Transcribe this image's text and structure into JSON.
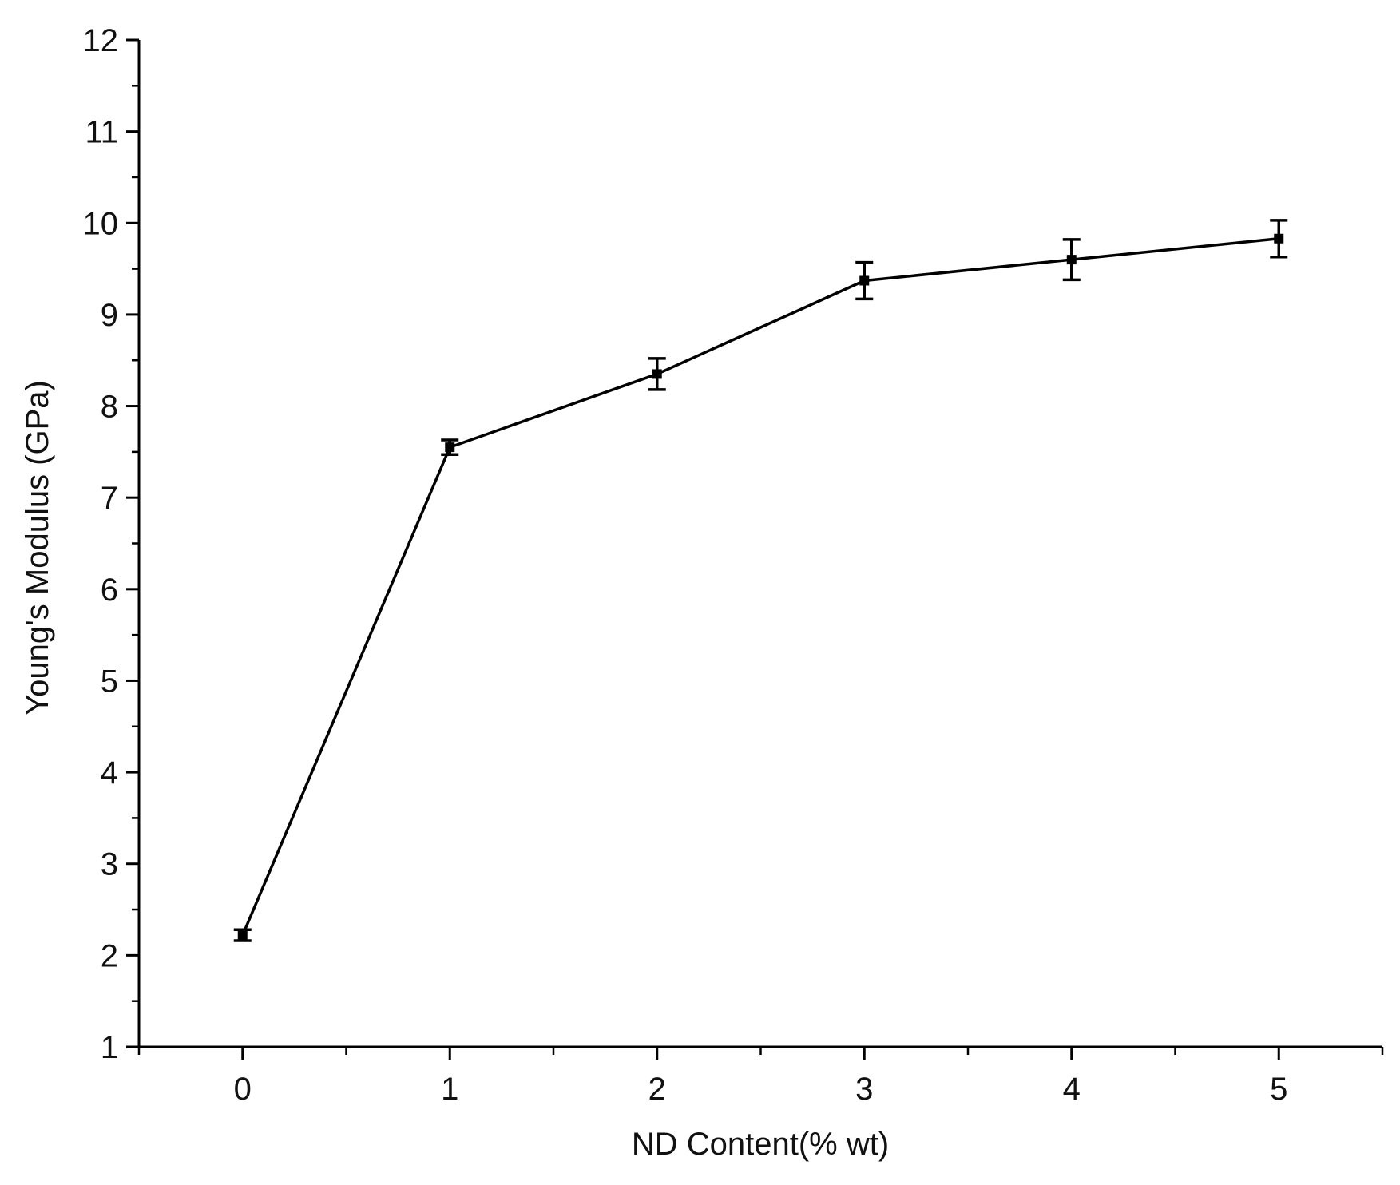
{
  "chart_data": {
    "type": "line",
    "xlabel": "ND Content(% wt)",
    "ylabel": "Young's Modulus (GPa)",
    "xlim": [
      -0.5,
      5.5
    ],
    "ylim": [
      1,
      12
    ],
    "x_ticks": [
      0,
      1,
      2,
      3,
      4,
      5
    ],
    "y_ticks": [
      1,
      2,
      3,
      4,
      5,
      6,
      7,
      8,
      9,
      10,
      11,
      12
    ],
    "grid": false,
    "series": [
      {
        "x": [
          0,
          1,
          2,
          3,
          4,
          5
        ],
        "values": [
          2.22,
          7.55,
          8.35,
          9.37,
          9.6,
          9.83
        ],
        "errors": [
          0.06,
          0.08,
          0.17,
          0.2,
          0.22,
          0.2
        ],
        "color": "#000000",
        "marker": "square"
      }
    ]
  }
}
